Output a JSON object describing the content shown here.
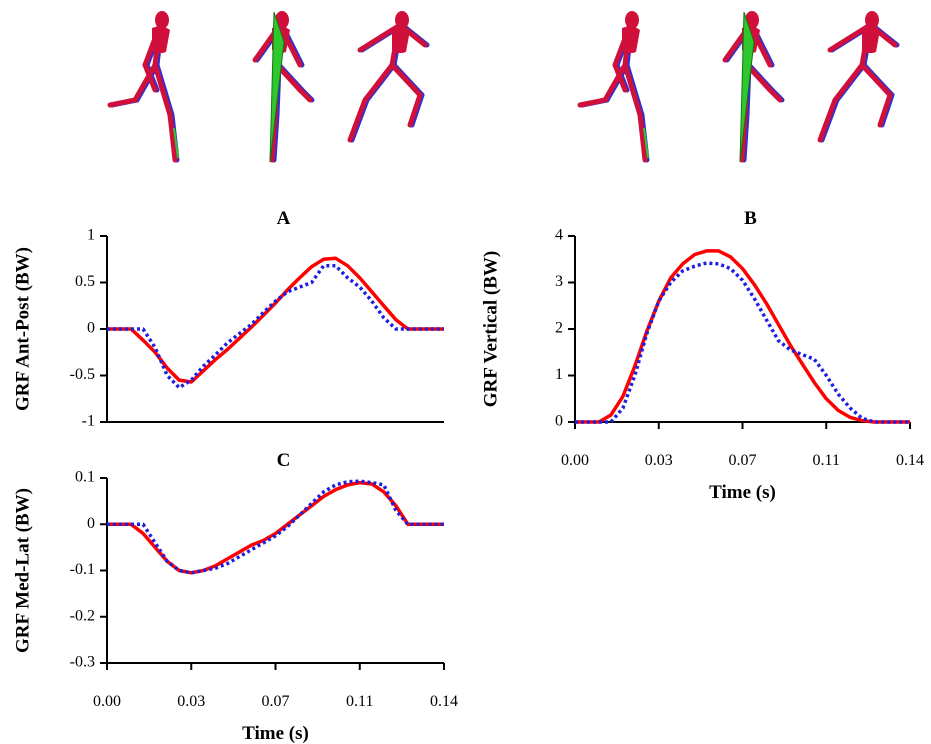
{
  "chart_data": [
    {
      "type": "line",
      "title": "A",
      "ylabel": "GRF Ant-Post (BW)",
      "x": [
        0,
        0.005,
        0.01,
        0.015,
        0.02,
        0.025,
        0.03,
        0.035,
        0.04,
        0.045,
        0.05,
        0.055,
        0.06,
        0.065,
        0.07,
        0.075,
        0.08,
        0.085,
        0.09,
        0.095,
        0.1,
        0.105,
        0.11,
        0.115,
        0.12,
        0.125,
        0.13,
        0.135,
        0.14
      ],
      "xlim": [
        0,
        0.14
      ],
      "ylim": [
        -1,
        1
      ],
      "yticks": [
        1,
        0.5,
        0,
        -0.5,
        -1
      ],
      "series": [
        {
          "color": "#ff0000",
          "dash": "solid",
          "values": [
            0,
            0,
            0,
            -0.12,
            -0.25,
            -0.42,
            -0.55,
            -0.57,
            -0.45,
            -0.33,
            -0.22,
            -0.1,
            0.02,
            0.15,
            0.28,
            0.42,
            0.55,
            0.67,
            0.75,
            0.76,
            0.68,
            0.55,
            0.4,
            0.25,
            0.1,
            0,
            0,
            0,
            0
          ]
        },
        {
          "color": "#1f1fe0",
          "dash": "dotted",
          "values": [
            0,
            0,
            0,
            0,
            -0.2,
            -0.5,
            -0.63,
            -0.55,
            -0.4,
            -0.28,
            -0.15,
            -0.05,
            0.05,
            0.18,
            0.3,
            0.4,
            0.45,
            0.5,
            0.68,
            0.68,
            0.55,
            0.45,
            0.3,
            0.12,
            0,
            0,
            0,
            0,
            0
          ]
        }
      ]
    },
    {
      "type": "line",
      "title": "B",
      "ylabel": "GRF Vertical (BW)",
      "xlabel": "Time (s)",
      "x": [
        0,
        0.005,
        0.01,
        0.015,
        0.02,
        0.025,
        0.03,
        0.035,
        0.04,
        0.045,
        0.05,
        0.055,
        0.06,
        0.065,
        0.07,
        0.075,
        0.08,
        0.085,
        0.09,
        0.095,
        0.1,
        0.105,
        0.11,
        0.115,
        0.12,
        0.125,
        0.13,
        0.135,
        0.14
      ],
      "xlim": [
        0,
        0.14
      ],
      "xticks": [
        {
          "value": 0,
          "label": "0.00"
        },
        {
          "value": 0.035,
          "label": "0.03"
        },
        0.07,
        {
          "value": 0.105,
          "label": "0.11"
        },
        0.14
      ],
      "ylim": [
        0,
        4
      ],
      "yticks": [
        4,
        3,
        2,
        1,
        0
      ],
      "series": [
        {
          "color": "#ff0000",
          "dash": "solid",
          "values": [
            0,
            0,
            0,
            0.15,
            0.55,
            1.2,
            1.95,
            2.6,
            3.1,
            3.4,
            3.6,
            3.68,
            3.68,
            3.55,
            3.3,
            2.95,
            2.55,
            2.1,
            1.65,
            1.25,
            0.85,
            0.5,
            0.25,
            0.1,
            0.03,
            0,
            0,
            0,
            0
          ]
        },
        {
          "color": "#1f1fe0",
          "dash": "dotted",
          "values": [
            0,
            0,
            0,
            0,
            0.3,
            1.0,
            1.9,
            2.6,
            3.0,
            3.25,
            3.35,
            3.42,
            3.4,
            3.3,
            3.05,
            2.65,
            2.2,
            1.75,
            1.55,
            1.45,
            1.35,
            1.0,
            0.6,
            0.3,
            0.08,
            0,
            0,
            0,
            0
          ]
        }
      ]
    },
    {
      "type": "line",
      "title": "C",
      "ylabel": "GRF Med-Lat (BW)",
      "xlabel": "Time (s)",
      "x": [
        0,
        0.005,
        0.01,
        0.015,
        0.02,
        0.025,
        0.03,
        0.035,
        0.04,
        0.045,
        0.05,
        0.055,
        0.06,
        0.065,
        0.07,
        0.075,
        0.08,
        0.085,
        0.09,
        0.095,
        0.1,
        0.105,
        0.11,
        0.115,
        0.12,
        0.125,
        0.13,
        0.135,
        0.14
      ],
      "xlim": [
        0,
        0.14
      ],
      "xticks": [
        {
          "value": 0,
          "label": "0.00"
        },
        {
          "value": 0.035,
          "label": "0.03"
        },
        0.07,
        {
          "value": 0.105,
          "label": "0.11"
        },
        0.14
      ],
      "ylim": [
        -0.3,
        0.1
      ],
      "yticks": [
        0.1,
        0,
        -0.1,
        -0.2,
        -0.3
      ],
      "series": [
        {
          "color": "#ff0000",
          "dash": "solid",
          "values": [
            0,
            0,
            0,
            -0.02,
            -0.05,
            -0.08,
            -0.1,
            -0.105,
            -0.1,
            -0.09,
            -0.075,
            -0.06,
            -0.045,
            -0.035,
            -0.02,
            0,
            0.02,
            0.04,
            0.06,
            0.075,
            0.085,
            0.09,
            0.087,
            0.07,
            0.04,
            0,
            0,
            0,
            0
          ]
        },
        {
          "color": "#1f1fe0",
          "dash": "dotted",
          "values": [
            0,
            0,
            0,
            0,
            -0.04,
            -0.08,
            -0.1,
            -0.105,
            -0.1,
            -0.095,
            -0.085,
            -0.07,
            -0.055,
            -0.04,
            -0.025,
            -0.005,
            0.02,
            0.045,
            0.07,
            0.085,
            0.092,
            0.093,
            0.09,
            0.085,
            0.03,
            0,
            0,
            0,
            0
          ]
        }
      ]
    }
  ]
}
